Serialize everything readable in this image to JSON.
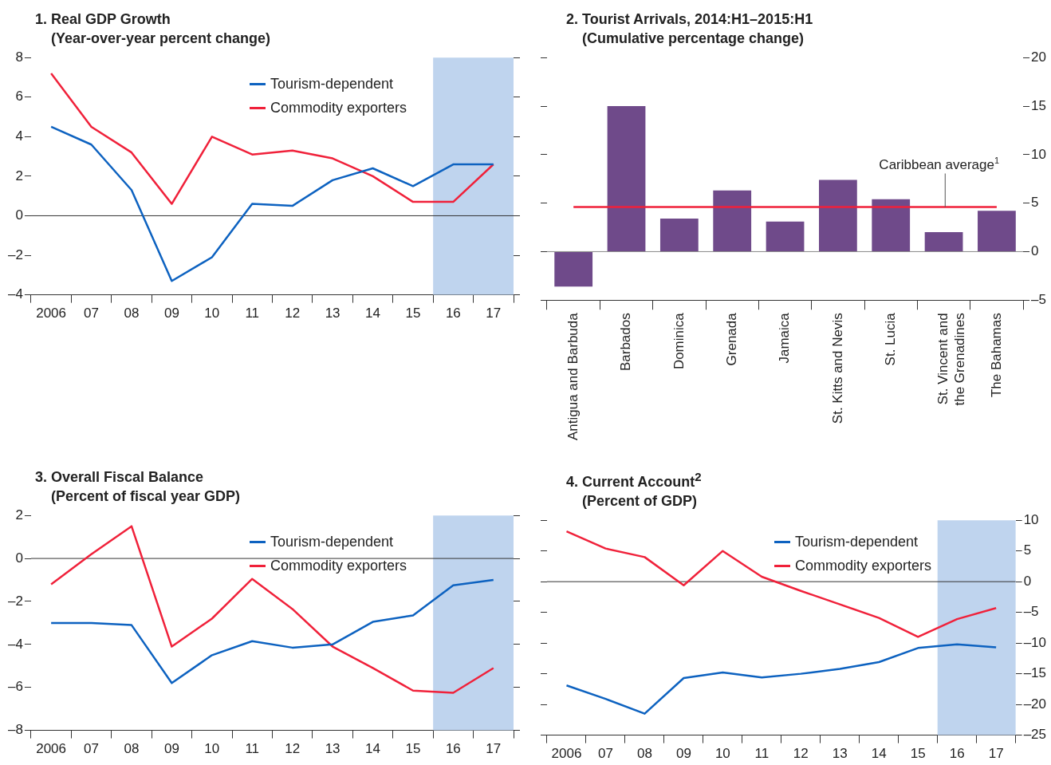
{
  "chart_data": [
    {
      "type": "line",
      "title": "1. Real GDP Growth",
      "subtitle": "(Year-over-year percent change)",
      "categories": [
        "2006",
        "07",
        "08",
        "09",
        "10",
        "11",
        "12",
        "13",
        "14",
        "15",
        "16",
        "17"
      ],
      "ylim": [
        -4,
        8
      ],
      "yticks": [
        {
          "value": -4,
          "label": "–4"
        },
        {
          "value": -2,
          "label": "–2"
        },
        0,
        2,
        4,
        6,
        8
      ],
      "legend": "top right",
      "series": [
        {
          "name": "Tourism-dependent",
          "color": "#0d62c0",
          "values": [
            4.5,
            3.6,
            1.3,
            -3.3,
            -2.1,
            0.6,
            0.5,
            1.8,
            2.4,
            1.5,
            2.6,
            2.6
          ]
        },
        {
          "name": "Commodity exporters",
          "color": "#f0213a",
          "values": [
            7.2,
            4.5,
            3.2,
            0.6,
            4.0,
            3.1,
            3.3,
            2.9,
            2.0,
            0.7,
            0.7,
            2.6
          ]
        }
      ],
      "ref_lines": [
        {
          "axis": "y",
          "value": 0,
          "color": "#333333"
        }
      ],
      "bands": [
        {
          "axis": "x",
          "from": "16",
          "to": "17",
          "color": "#bfd4ee"
        }
      ]
    },
    {
      "type": "bar",
      "title": "2. Tourist Arrivals, 2014:H1–2015:H1",
      "subtitle": "(Cumulative percentage change)",
      "categories": [
        "Antigua and Barbuda",
        "Barbados",
        "Dominica",
        "Grenada",
        "Jamaica",
        "St. Kitts and Nevis",
        "St. Lucia",
        "St. Vincent and the Grenadines",
        "The Bahamas"
      ],
      "y2lim": [
        -5,
        20
      ],
      "y2ticks": [
        {
          "value": -5,
          "label": "–5"
        },
        0,
        5,
        10,
        15,
        20
      ],
      "series": [
        {
          "color": "#6f4a8a",
          "axis": "y2",
          "values": [
            -3.6,
            15.0,
            3.4,
            6.3,
            3.1,
            7.4,
            5.4,
            2.0,
            4.2
          ]
        }
      ],
      "ref_lines": [
        {
          "axis": "y2",
          "value": 0,
          "color": "#888888"
        },
        {
          "axis": "y2",
          "value": 4.6,
          "label": "Caribbean average$^{1}$",
          "color": "#f0213a"
        }
      ]
    },
    {
      "type": "line",
      "title": "3. Overall Fiscal Balance",
      "subtitle": "(Percent of fiscal year GDP)",
      "categories": [
        "2006",
        "07",
        "08",
        "09",
        "10",
        "11",
        "12",
        "13",
        "14",
        "15",
        "16",
        "17"
      ],
      "ylim": [
        -8,
        2
      ],
      "yticks": [
        {
          "value": -8,
          "label": "–8"
        },
        {
          "value": -6,
          "label": "–6"
        },
        {
          "value": -4,
          "label": "–4"
        },
        {
          "value": -2,
          "label": "–2"
        },
        0,
        2
      ],
      "legend": "top right",
      "series": [
        {
          "name": "Tourism-dependent",
          "color": "#0d62c0",
          "values": [
            -3.0,
            -3.0,
            -3.1,
            -5.8,
            -4.5,
            -3.85,
            -4.15,
            -4.0,
            -2.95,
            -2.65,
            -1.25,
            -1.0
          ]
        },
        {
          "name": "Commodity exporters",
          "color": "#f0213a",
          "values": [
            -1.2,
            0.2,
            1.5,
            -4.1,
            -2.8,
            -0.95,
            -2.35,
            -4.1,
            -5.1,
            -6.15,
            -6.25,
            -5.1
          ]
        }
      ],
      "ref_lines": [
        {
          "axis": "y",
          "value": 0,
          "color": "#333333"
        }
      ],
      "bands": [
        {
          "axis": "x",
          "from": "16",
          "to": "17",
          "color": "#bfd4ee"
        }
      ]
    },
    {
      "type": "line",
      "title": "4. Current Account$^{2}$",
      "subtitle": "(Percent of GDP)",
      "categories": [
        "2006",
        "07",
        "08",
        "09",
        "10",
        "11",
        "12",
        "13",
        "14",
        "15",
        "16",
        "17"
      ],
      "y2lim": [
        -25,
        10
      ],
      "y2ticks": [
        {
          "value": -25,
          "label": "–25"
        },
        {
          "value": -20,
          "label": "–20"
        },
        {
          "value": -15,
          "label": "–15"
        },
        {
          "value": -10,
          "label": "–10"
        },
        {
          "value": -5,
          "label": "–5"
        },
        0,
        5,
        10
      ],
      "legend": "top right",
      "series": [
        {
          "name": "Tourism-dependent",
          "color": "#0d62c0",
          "axis": "y2",
          "values": [
            -16.9,
            -19.1,
            -21.5,
            -15.7,
            -14.8,
            -15.6,
            -15.0,
            -14.2,
            -13.1,
            -10.8,
            -10.2,
            -10.7
          ]
        },
        {
          "name": "Commodity exporters",
          "color": "#f0213a",
          "axis": "y2",
          "values": [
            8.2,
            5.4,
            4.0,
            -0.6,
            5.0,
            0.8,
            -1.5,
            -3.7,
            -5.9,
            -9.0,
            -6.1,
            -4.3
          ]
        }
      ],
      "ref_lines": [
        {
          "axis": "y2",
          "value": 0,
          "color": "#333333"
        }
      ],
      "bands": [
        {
          "axis": "x",
          "from": "16",
          "to": "17",
          "color": "#bfd4ee"
        }
      ]
    }
  ]
}
